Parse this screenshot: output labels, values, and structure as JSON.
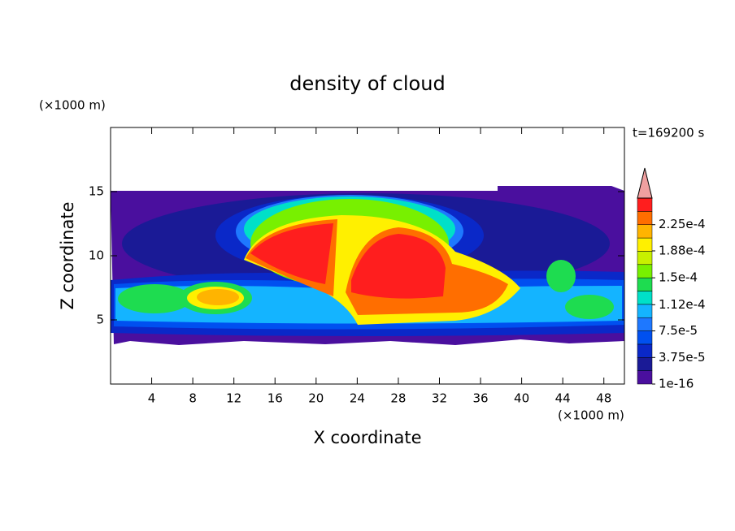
{
  "chart_data": {
    "type": "contour",
    "title": "density of cloud",
    "x_label": "X coordinate",
    "y_label": "Z coordinate",
    "x_unit": "(×1000 m)",
    "y_unit": "(×1000 m)",
    "annotation": "t=169200 s",
    "xlim": [
      0,
      50
    ],
    "ylim": [
      0,
      20
    ],
    "xticks": [
      4,
      8,
      12,
      16,
      20,
      24,
      28,
      32,
      36,
      40,
      44,
      48
    ],
    "yticks": [
      5,
      10,
      15
    ],
    "colorbar": {
      "colors": [
        "#4a0f9e",
        "#1a1a96",
        "#0a28c8",
        "#0050f0",
        "#1e78ff",
        "#14b4ff",
        "#00e0c8",
        "#1edc50",
        "#78f000",
        "#c8f000",
        "#fff000",
        "#ffb400",
        "#ff6e00",
        "#ff1e1e"
      ],
      "overflow_color": "#f0a0a0",
      "ticks": [
        1e-16,
        {
          "value": 3.75e-05,
          "label": "3.75e-5"
        },
        {
          "value": 7.5e-05,
          "label": "7.5e-5"
        },
        {
          "value": 0.000112,
          "label": "1.12e-4"
        },
        {
          "value": 0.00015,
          "label": "1.5e-4"
        },
        {
          "value": 0.000188,
          "label": "1.88e-4"
        },
        {
          "value": 0.000225,
          "label": "2.25e-4"
        }
      ]
    }
  }
}
